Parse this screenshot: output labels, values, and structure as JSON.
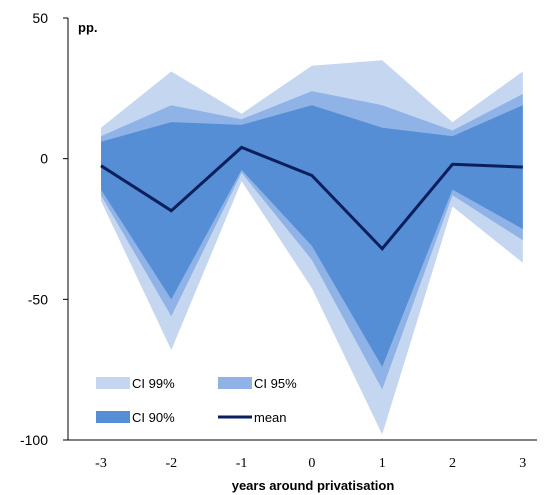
{
  "chart_data": {
    "type": "area",
    "x": [
      -3,
      -2,
      -1,
      0,
      1,
      2,
      3
    ],
    "xlabel": "years around privatisation",
    "unit_label": "pp.",
    "ylim": [
      -100,
      50
    ],
    "yticks": [
      50,
      0,
      -50,
      -100
    ],
    "series": [
      {
        "name": "CI 99%",
        "upper": [
          11,
          31,
          16,
          33,
          35,
          13,
          31
        ],
        "lower": [
          -15,
          -68,
          -8,
          -46,
          -98,
          -17,
          -37
        ],
        "color": "#c5d7f0"
      },
      {
        "name": "CI 95%",
        "upper": [
          8,
          19,
          14,
          24,
          19,
          10,
          23
        ],
        "lower": [
          -13,
          -56,
          -5,
          -36,
          -82,
          -13,
          -29
        ],
        "color": "#8fb3e6"
      },
      {
        "name": "CI 90%",
        "upper": [
          6,
          13,
          12,
          19,
          11,
          8,
          19
        ],
        "lower": [
          -11,
          -50,
          -4,
          -31,
          -74,
          -11,
          -25
        ],
        "color": "#558ed5"
      },
      {
        "name": "mean",
        "values": [
          -2.5,
          -18.5,
          4,
          -6,
          -32,
          -2,
          -3
        ],
        "color": "#0a1f5c"
      }
    ],
    "legend": [
      {
        "label": "CI 99%",
        "kind": "swatch",
        "color": "#c5d7f0"
      },
      {
        "label": "CI 95%",
        "kind": "swatch",
        "color": "#8fb3e6"
      },
      {
        "label": "CI 90%",
        "kind": "swatch",
        "color": "#558ed5"
      },
      {
        "label": "mean",
        "kind": "line",
        "color": "#0a1f5c"
      }
    ],
    "legend_position": "bottom-left",
    "grid": false
  }
}
